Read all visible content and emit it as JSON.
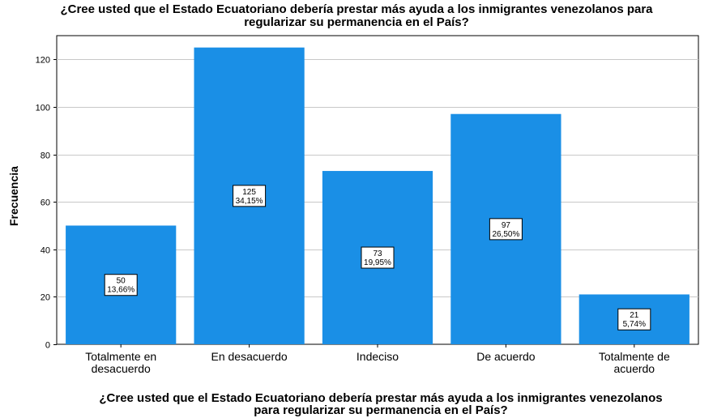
{
  "chart_data": {
    "type": "bar",
    "title": [
      "¿Cree usted que el Estado Ecuatoriano debería prestar más ayuda a los inmigrantes venezolanos para",
      "regularizar su permanencia en el País?"
    ],
    "xlabel": [
      "¿Cree usted que el Estado Ecuatoriano debería prestar más ayuda a los inmigrantes venezolanos",
      "para regularizar su permanencia en el País?"
    ],
    "ylabel": "Frecuencia",
    "categories": [
      [
        "Totalmente en",
        "desacuerdo"
      ],
      [
        "En desacuerdo"
      ],
      [
        "Indeciso"
      ],
      [
        "De acuerdo"
      ],
      [
        "Totalmente de",
        "acuerdo"
      ]
    ],
    "values": [
      50,
      125,
      73,
      97,
      21
    ],
    "percent_labels": [
      "13,66%",
      "34,15%",
      "19,95%",
      "26,50%",
      "5,74%"
    ],
    "yticks": [
      0,
      20,
      40,
      60,
      80,
      100,
      120
    ],
    "ylim": [
      0,
      130
    ],
    "grid": true,
    "bar_color": "#1a8fe6",
    "grid_color": "#c8c8c8"
  }
}
